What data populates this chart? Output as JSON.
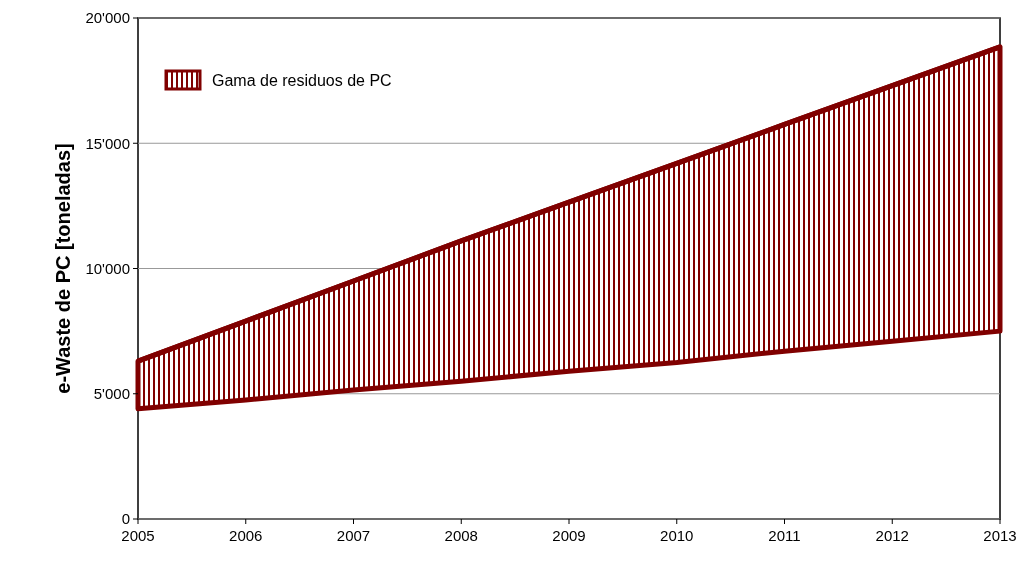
{
  "chart_data": {
    "type": "line",
    "ylabel": "e-Waste de PC [toneladas]",
    "x": [
      2005,
      2006,
      2007,
      2008,
      2009,
      2010,
      2011,
      2012,
      2013
    ],
    "series": [
      {
        "name": "Gama de residuos de PC",
        "color": "#800000",
        "values": [
          6300,
          7900,
          9500,
          11100,
          12650,
          14200,
          15750,
          17300,
          18850
        ],
        "lower": [
          4400,
          4750,
          5150,
          5500,
          5900,
          6250,
          6700,
          7100,
          7500
        ],
        "upper": [
          6300,
          7900,
          9500,
          11100,
          12650,
          14200,
          15750,
          17300,
          18850
        ]
      }
    ],
    "xlim": [
      2005,
      2013
    ],
    "xticks": [
      2005,
      2006,
      2007,
      2008,
      2009,
      2010,
      2011,
      2012,
      2013
    ],
    "ylim": [
      0,
      20000
    ],
    "yticks": [
      0,
      {
        "value": 5000,
        "label": "5'000"
      },
      {
        "value": 10000,
        "label": "10'000"
      },
      {
        "value": 15000,
        "label": "15'000"
      },
      {
        "value": 20000,
        "label": "20'000"
      }
    ],
    "grid": "y",
    "legend": "top left"
  }
}
